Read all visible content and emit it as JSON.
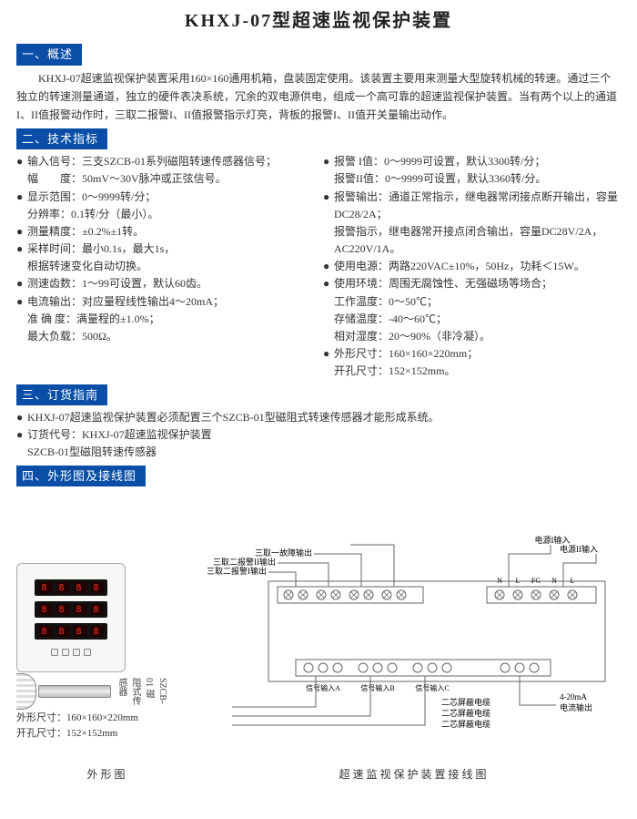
{
  "title": "KHXJ-07型超速监视保护装置",
  "sections": {
    "s1": "一、概述",
    "s2": "二、技术指标",
    "s3": "三、订货指南",
    "s4": "四、外形图及接线图"
  },
  "overview": "KHXJ-07超速监视保护装置采用160×160通用机箱，盘装固定使用。该装置主要用来测量大型旋转机械的转速。通过三个独立的转速测量通道，独立的硬件表决系统，冗余的双电源供电，组成一个高可靠的超速监视保护装置。当有两个以上的通道I、II值报警动作时，三取二报警I、II值报警指示灯亮，背板的报警I、II值开关量输出动作。",
  "specs_left": [
    {
      "b": true,
      "t": "输入信号：三支SZCB-01系列磁阻转速传感器信号；"
    },
    {
      "b": false,
      "t": "幅　　度：50mV～30V脉冲或正弦信号。"
    },
    {
      "b": true,
      "t": "显示范围：0～9999转/分；"
    },
    {
      "b": false,
      "t": "分辨率：0.1转/分（最小）。"
    },
    {
      "b": true,
      "t": "测量精度：±0.2%±1转。"
    },
    {
      "b": true,
      "t": "采样时间：最小0.1s，最大1s，"
    },
    {
      "b": false,
      "t": "根据转速变化自动切换。"
    },
    {
      "b": true,
      "t": "测速齿数：1～99可设置，默认60齿。"
    },
    {
      "b": true,
      "t": "电流输出：对应量程线性输出4～20mA；"
    },
    {
      "b": false,
      "t": "准 确 度：满量程的±1.0%；"
    },
    {
      "b": false,
      "t": "最大负载：500Ω。"
    }
  ],
  "specs_right": [
    {
      "b": true,
      "t": "报警 I值：0～9999可设置，默认3300转/分；"
    },
    {
      "b": false,
      "t": "报警II值：0～9999可设置，默认3360转/分。"
    },
    {
      "b": true,
      "t": "报警输出：通道正常指示，继电器常闭接点断开输出，容量DC28/2A；"
    },
    {
      "b": false,
      "t": "报警指示，继电器常开接点闭合输出，容量DC28V/2A，AC220V/1A。"
    },
    {
      "b": true,
      "t": "使用电源：两路220VAC±10%，50Hz，功耗＜15W。"
    },
    {
      "b": true,
      "t": "使用环境：周围无腐蚀性、无强磁场等场合；"
    },
    {
      "b": false,
      "t": "工作温度：0～50℃；"
    },
    {
      "b": false,
      "t": "存储温度：-40～60℃；"
    },
    {
      "b": false,
      "t": "相对湿度：20～90%（非冷凝）。"
    },
    {
      "b": true,
      "t": "外形尺寸：160×160×220mm；"
    },
    {
      "b": false,
      "t": "开孔尺寸：152×152mm。"
    }
  ],
  "ordering": [
    {
      "b": true,
      "t": "KHXJ-07超速监视保护装置必须配置三个SZCB-01型磁阻式转速传感器才能形成系统。"
    },
    {
      "b": true,
      "t": "订货代号：KHXJ-07超速监视保护装置"
    },
    {
      "b": false,
      "t": "SZCB-01型磁阻转速传感器"
    }
  ],
  "device": {
    "dim1": "外形尺寸：160×160×220mm",
    "dim2": "开孔尺寸：152×152mm",
    "sensor_label": "SZCB-01 磁阻式传感器"
  },
  "captions": {
    "left": "外形图",
    "right": "超速监视保护装置接线图"
  },
  "wiring": {
    "top_labels": [
      "三取二报警I输出",
      "三取二报警II输出",
      "三取一故障输出",
      "电源I输入",
      "电源II输入"
    ],
    "top_terminals": [
      "N",
      "L",
      "FG",
      "N",
      "L"
    ],
    "bottom_labels": [
      "信号输入A",
      "信号输入B",
      "信号输入C",
      "4-20mA 电流输出"
    ],
    "cable": "二芯屏蔽电缆",
    "colors": {
      "line": "#666666",
      "box": "#888888",
      "text": "#333333",
      "bg": "#ffffff"
    }
  }
}
